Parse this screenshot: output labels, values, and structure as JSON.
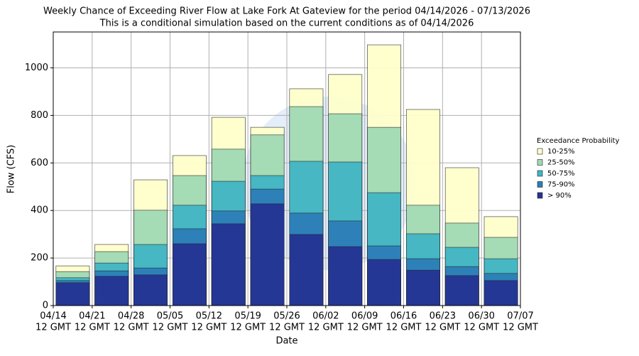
{
  "chart_data": {
    "type": "bar",
    "title": "Weekly Chance of Exceeding River Flow at Lake Fork At Gateview for the period 04/14/2026 - 07/13/2026",
    "subtitle": "This is a conditional simulation based on the current conditions as of 04/14/2026",
    "x_label": "Date",
    "y_label": "Flow (CFS)",
    "legend_title": "Exceedance Probability",
    "xticks": [
      {
        "date": "04/14",
        "time": "12 GMT"
      },
      {
        "date": "04/21",
        "time": "12 GMT"
      },
      {
        "date": "04/28",
        "time": "12 GMT"
      },
      {
        "date": "05/05",
        "time": "12 GMT"
      },
      {
        "date": "05/12",
        "time": "12 GMT"
      },
      {
        "date": "05/19",
        "time": "12 GMT"
      },
      {
        "date": "05/26",
        "time": "12 GMT"
      },
      {
        "date": "06/02",
        "time": "12 GMT"
      },
      {
        "date": "06/09",
        "time": "12 GMT"
      },
      {
        "date": "06/16",
        "time": "12 GMT"
      },
      {
        "date": "06/23",
        "time": "12 GMT"
      },
      {
        "date": "06/30",
        "time": "12 GMT"
      },
      {
        "date": "07/07",
        "time": "12 GMT"
      }
    ],
    "ylim": [
      0,
      1151
    ],
    "yticks": [
      0,
      200,
      400,
      600,
      800,
      1000
    ],
    "grid": true,
    "series": [
      {
        "name": "10-25%",
        "color": "#ffffcc",
        "values": [
          167,
          257,
          529,
          631,
          792,
          750,
          912,
          972,
          1097,
          825,
          580,
          374
        ]
      },
      {
        "name": "25-50%",
        "color": "#a1dab4",
        "values": [
          143,
          227,
          401,
          547,
          658,
          718,
          837,
          807,
          750,
          422,
          347,
          287
        ]
      },
      {
        "name": "50-75%",
        "color": "#41b6c4",
        "values": [
          117,
          179,
          257,
          422,
          523,
          547,
          607,
          604,
          475,
          302,
          245,
          197
        ]
      },
      {
        "name": "75-90%",
        "color": "#2c7fb8",
        "values": [
          105,
          146,
          158,
          323,
          398,
          490,
          389,
          356,
          251,
          197,
          164,
          135
        ]
      },
      {
        "name": "> 90%",
        "color": "#253494",
        "values": [
          96,
          123,
          129,
          260,
          344,
          428,
          299,
          248,
          194,
          149,
          126,
          105
        ]
      }
    ]
  }
}
